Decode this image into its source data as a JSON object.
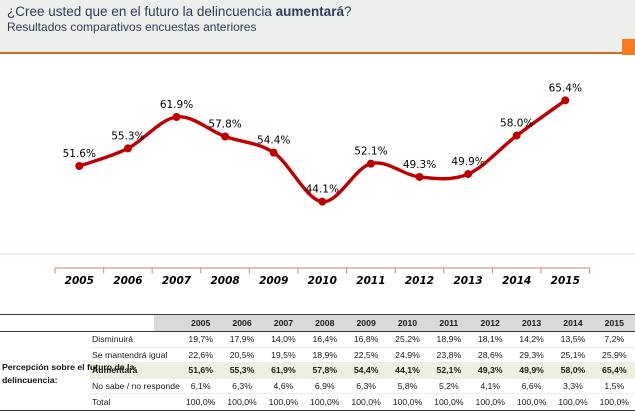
{
  "header": {
    "title_prefix": "¿Cree usted que en el futuro la delincuencia ",
    "title_bold": "aumentará",
    "title_suffix": "?",
    "subtitle": "Resultados comparativos encuestas anteriores"
  },
  "chart_data": {
    "type": "line",
    "title": "",
    "xlabel": "",
    "ylabel": "",
    "grid": "off",
    "legend": "none",
    "data_labels": "dot-decimal percent, above points",
    "categories": [
      "2005",
      "2006",
      "2007",
      "2008",
      "2009",
      "2010",
      "2011",
      "2012",
      "2013",
      "2014",
      "2015"
    ],
    "series": [
      {
        "name": "Aumentará",
        "values": [
          51.6,
          55.3,
          61.9,
          57.8,
          54.4,
          44.1,
          52.1,
          49.3,
          49.9,
          58.0,
          65.4
        ]
      }
    ],
    "line_color": "#C00000",
    "axis_color": "#D99694"
  },
  "table": {
    "group_label": "Percepción sobre  el futuro de la delincuencia:",
    "columns": [
      "2005",
      "2006",
      "2007",
      "2008",
      "2009",
      "2010",
      "2011",
      "2012",
      "2013",
      "2014",
      "2015"
    ],
    "rows": [
      {
        "label": "Disminuirá",
        "highlight": false,
        "values": [
          "19,7%",
          "17,9%",
          "14,0%",
          "16,4%",
          "16,8%",
          "25,2%",
          "18,9%",
          "18,1%",
          "14,2%",
          "13,5%",
          "7,2%"
        ]
      },
      {
        "label": "Se mantendrá igual",
        "highlight": false,
        "values": [
          "22,6%",
          "20,5%",
          "19,5%",
          "18,9%",
          "22,5%",
          "24,9%",
          "23,8%",
          "28,6%",
          "29,3%",
          "25,1%",
          "25,9%"
        ]
      },
      {
        "label": "Aumentará",
        "highlight": true,
        "values": [
          "51,6%",
          "55,3%",
          "61,9%",
          "57,8%",
          "54,4%",
          "44,1%",
          "52,1%",
          "49,3%",
          "49,9%",
          "58,0%",
          "65,4%"
        ]
      },
      {
        "label": "No sabe / no responde",
        "highlight": false,
        "values": [
          "6,1%",
          "6,3%",
          "4,6%",
          "6,9%",
          "6,3%",
          "5,8%",
          "5,2%",
          "4,1%",
          "6,6%",
          "3,3%",
          "1,5%"
        ]
      },
      {
        "label": "Total",
        "highlight": false,
        "values": [
          "100,0%",
          "100,0%",
          "100,0%",
          "100,0%",
          "100,0%",
          "100,0%",
          "100,0%",
          "100,0%",
          "100,0%",
          "100,0%",
          "100,0%"
        ]
      }
    ]
  },
  "colors": {
    "header_bg": "#ECEFEC",
    "title_text": "#333A5C",
    "rule_orange": "#D4661A",
    "accent_square_orange": "#F87A1D",
    "table_header_bg": "#D9D9D9",
    "highlight_row_bg": "#EBF1DE",
    "chart_line": "#C00000",
    "chart_axis": "#D99694",
    "faint_plot_line": "#E7D5D5"
  }
}
